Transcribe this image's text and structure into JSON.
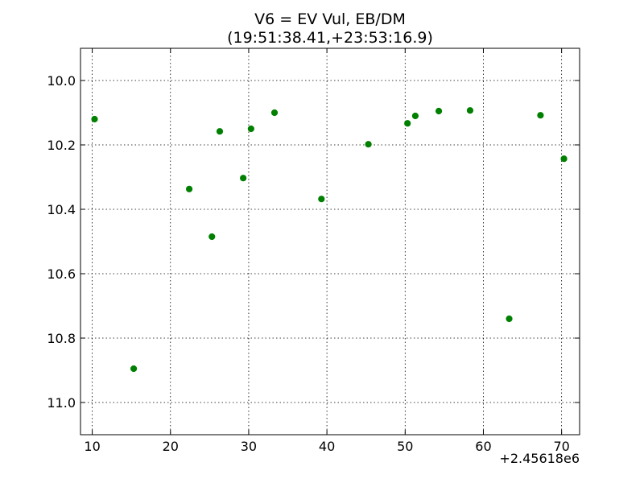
{
  "chart_data": {
    "type": "scatter",
    "title": [
      "V6 = EV Vul, EB/DM",
      "(19:51:38.41,+23:53:16.9)"
    ],
    "xlabel": "",
    "ylabel": "",
    "x_offset_label": "+2.45618e6",
    "xlim": [
      8.5,
      72.3
    ],
    "ylim": [
      11.1,
      9.9
    ],
    "y_inverted": true,
    "grid": true,
    "marker_color": "#008000",
    "x_ticks": [
      10,
      20,
      30,
      40,
      50,
      60,
      70
    ],
    "x_tick_labels": [
      "10",
      "20",
      "30",
      "40",
      "50",
      "60",
      "70"
    ],
    "y_ticks": [
      10.0,
      10.2,
      10.4,
      10.6,
      10.8,
      11.0
    ],
    "y_tick_labels": [
      "10.0",
      "10.2",
      "10.4",
      "10.6",
      "10.8",
      "11.0"
    ],
    "series": [
      {
        "points": [
          {
            "x": 10.3,
            "y": 10.12
          },
          {
            "x": 15.3,
            "y": 10.895
          },
          {
            "x": 22.4,
            "y": 10.337
          },
          {
            "x": 25.3,
            "y": 10.485
          },
          {
            "x": 26.3,
            "y": 10.158
          },
          {
            "x": 29.3,
            "y": 10.303
          },
          {
            "x": 30.3,
            "y": 10.15
          },
          {
            "x": 33.3,
            "y": 10.1
          },
          {
            "x": 39.3,
            "y": 10.368
          },
          {
            "x": 45.3,
            "y": 10.198
          },
          {
            "x": 50.3,
            "y": 10.133
          },
          {
            "x": 51.3,
            "y": 10.11
          },
          {
            "x": 54.3,
            "y": 10.095
          },
          {
            "x": 58.3,
            "y": 10.093
          },
          {
            "x": 63.3,
            "y": 10.74
          },
          {
            "x": 67.3,
            "y": 10.108
          },
          {
            "x": 70.3,
            "y": 10.243
          }
        ]
      }
    ]
  }
}
